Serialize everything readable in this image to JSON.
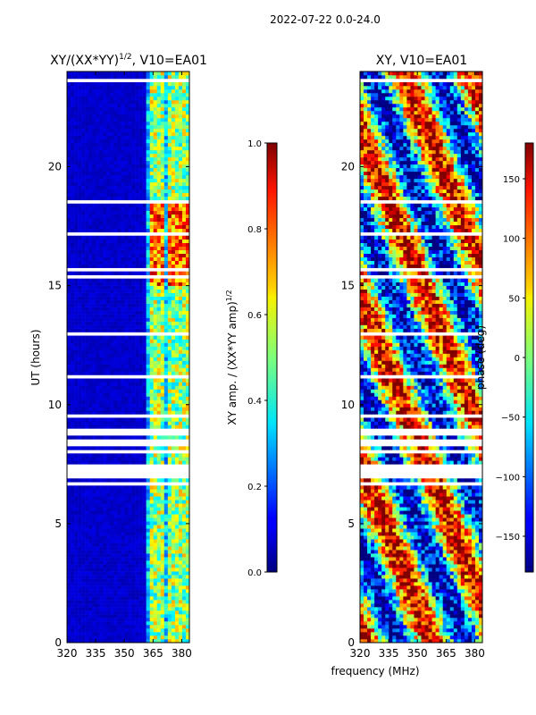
{
  "figure": {
    "suptitle": "2022-07-22 0.0-24.0",
    "shared_xlabel": "frequency (MHz)"
  },
  "chart_data": [
    {
      "type": "heatmap",
      "title_main": "XY/(XX*YY)",
      "title_sup": "1/2",
      "title_tail": ", V10=EA01",
      "ylabel": "UT (hours)",
      "xlim": [
        320,
        384
      ],
      "ylim": [
        0,
        24
      ],
      "xticks": [
        320,
        335,
        350,
        365,
        380
      ],
      "yticks": [
        0,
        5,
        10,
        15,
        20
      ],
      "colorbar": {
        "label_main": "XY amp. / (XX*YY amp)",
        "label_sup": "1/2",
        "range": [
          0.0,
          1.0
        ],
        "ticks": [
          "0.0",
          "0.2",
          "0.4",
          "0.6",
          "0.8",
          "1.0"
        ],
        "colormap": "jet"
      },
      "features": {
        "background_value": 0.05,
        "bright_columns_mhz": [
          364.5,
          367,
          370,
          373.5,
          376.5,
          379.5,
          382
        ],
        "bright_column_value": 0.55,
        "flagged_ut_hours": [
          [
            6.4,
            8.8
          ]
        ]
      }
    },
    {
      "type": "heatmap",
      "title": "XY, V10=EA01",
      "xlim": [
        320,
        384
      ],
      "ylim": [
        0,
        24
      ],
      "xticks": [
        320,
        335,
        350,
        365,
        380
      ],
      "yticks": [
        0,
        5,
        10,
        15,
        20
      ],
      "colorbar": {
        "label": "phase (deg)",
        "range": [
          -180,
          180
        ],
        "ticks": [
          "150",
          "100",
          "50",
          "0",
          "−50",
          "−100",
          "−150"
        ],
        "colormap": "jet"
      },
      "features": {
        "flagged_ut_hours": [
          [
            6.4,
            8.8
          ]
        ]
      }
    }
  ]
}
